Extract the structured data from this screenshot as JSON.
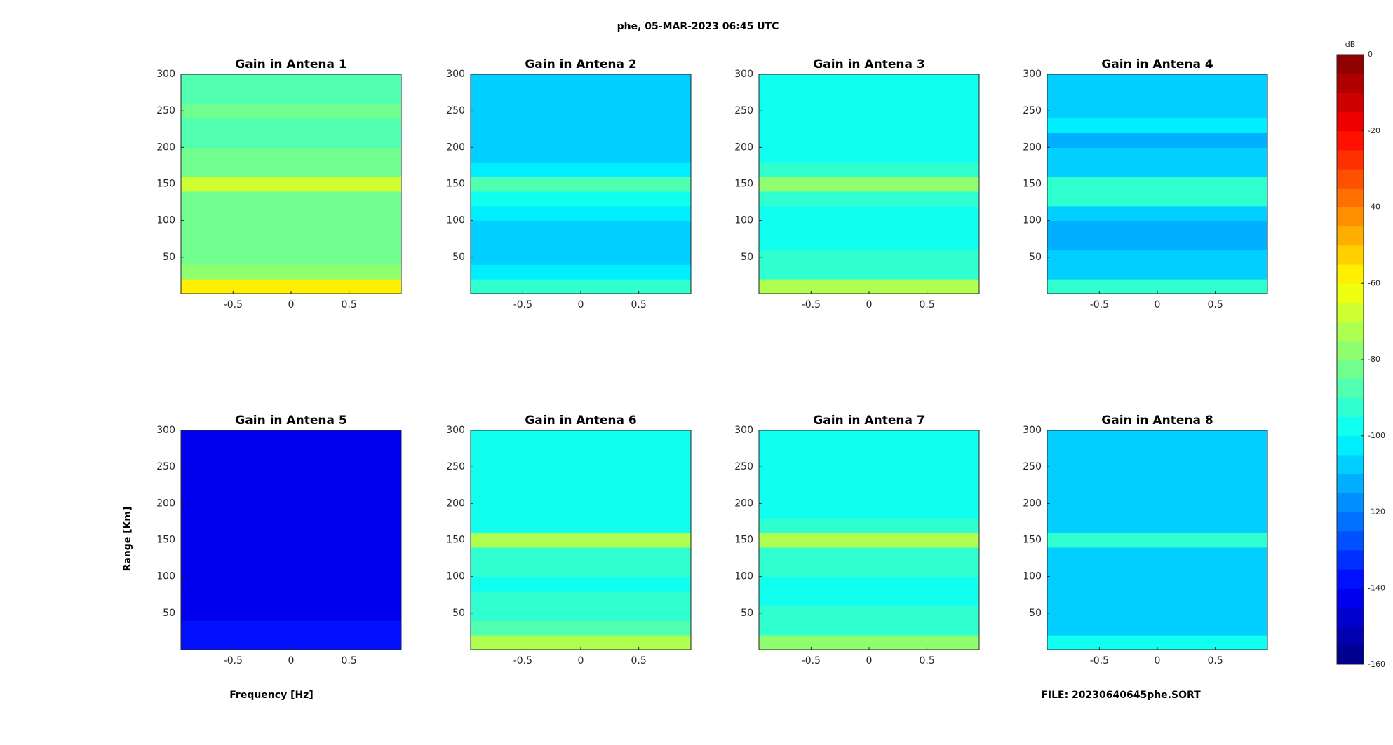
{
  "title": "phe, 05-MAR-2023 06:45 UTC",
  "xlabel": "Frequency [Hz]",
  "ylabel": "Range [Km]",
  "footer": "FILE: 20230640645phe.SORT",
  "colorbar": {
    "label": "dB",
    "lim": [
      -160,
      0
    ],
    "ticks": [
      0,
      -20,
      -40,
      -60,
      -80,
      -100,
      -120,
      -140,
      -160
    ],
    "colormap": "jet",
    "levels": 32
  },
  "chart_data": [
    {
      "type": "heatmap",
      "title": "Gain in Antena 1",
      "xlim": [
        -0.95,
        0.95
      ],
      "ylim": [
        0,
        300
      ],
      "xticks": [
        -0.5,
        0,
        0.5
      ],
      "yticks": [
        50,
        100,
        150,
        200,
        250,
        300
      ],
      "y_bins": [
        0,
        20,
        40,
        60,
        80,
        100,
        120,
        140,
        160,
        180,
        200,
        220,
        240,
        260,
        280,
        300
      ],
      "values": [
        -60,
        -78,
        -82,
        -84,
        -85,
        -84,
        -82,
        -66,
        -84,
        -85,
        -86,
        -86,
        -85,
        -86,
        -86
      ]
    },
    {
      "type": "heatmap",
      "title": "Gain in Antena 2",
      "xlim": [
        -0.95,
        0.95
      ],
      "ylim": [
        0,
        300
      ],
      "xticks": [
        -0.5,
        0,
        0.5
      ],
      "yticks": [
        50,
        100,
        150,
        200,
        250,
        300
      ],
      "y_bins": [
        0,
        20,
        40,
        60,
        80,
        100,
        120,
        140,
        160,
        180,
        200,
        220,
        240,
        260,
        280,
        300
      ],
      "values": [
        -95,
        -105,
        -106,
        -106,
        -106,
        -104,
        -98,
        -88,
        -104,
        -106,
        -107,
        -107,
        -106,
        -106,
        -107
      ]
    },
    {
      "type": "heatmap",
      "title": "Gain in Antena 3",
      "xlim": [
        -0.95,
        0.95
      ],
      "ylim": [
        0,
        300
      ],
      "xticks": [
        -0.5,
        0,
        0.5
      ],
      "yticks": [
        50,
        100,
        150,
        200,
        250,
        300
      ],
      "y_bins": [
        0,
        20,
        40,
        60,
        80,
        100,
        120,
        140,
        160,
        180,
        200,
        220,
        240,
        260,
        280,
        300
      ],
      "values": [
        -72,
        -92,
        -95,
        -96,
        -97,
        -96,
        -94,
        -76,
        -95,
        -96,
        -97,
        -97,
        -96,
        -96,
        -97
      ]
    },
    {
      "type": "heatmap",
      "title": "Gain in Antena 4",
      "xlim": [
        -0.95,
        0.95
      ],
      "ylim": [
        0,
        300
      ],
      "xticks": [
        -0.5,
        0,
        0.5
      ],
      "yticks": [
        50,
        100,
        150,
        200,
        250,
        300
      ],
      "y_bins": [
        0,
        20,
        40,
        60,
        80,
        100,
        120,
        140,
        160,
        180,
        200,
        220,
        240,
        260,
        280,
        300
      ],
      "values": [
        -92,
        -108,
        -110,
        -111,
        -112,
        -110,
        -95,
        -92,
        -110,
        -108,
        -112,
        -105,
        -110,
        -108,
        -110
      ]
    },
    {
      "type": "heatmap",
      "title": "Gain in Antena 5",
      "xlim": [
        -0.95,
        0.95
      ],
      "ylim": [
        0,
        300
      ],
      "xticks": [
        -0.5,
        0,
        0.5
      ],
      "yticks": [
        50,
        100,
        150,
        200,
        250,
        300
      ],
      "y_bins": [
        0,
        20,
        40,
        60,
        80,
        100,
        120,
        140,
        160,
        180,
        200,
        220,
        240,
        260,
        280,
        300
      ],
      "values": [
        -138,
        -140,
        -141,
        -141,
        -141,
        -141,
        -141,
        -141,
        -141,
        -141,
        -141,
        -141,
        -141,
        -141,
        -141
      ]
    },
    {
      "type": "heatmap",
      "title": "Gain in Antena 6",
      "xlim": [
        -0.95,
        0.95
      ],
      "ylim": [
        0,
        300
      ],
      "xticks": [
        -0.5,
        0,
        0.5
      ],
      "yticks": [
        50,
        100,
        150,
        200,
        250,
        300
      ],
      "y_bins": [
        0,
        20,
        40,
        60,
        80,
        100,
        120,
        140,
        160,
        180,
        200,
        220,
        240,
        260,
        280,
        300
      ],
      "values": [
        -72,
        -90,
        -93,
        -95,
        -96,
        -95,
        -93,
        -72,
        -96,
        -97,
        -98,
        -98,
        -98,
        -98,
        -98
      ]
    },
    {
      "type": "heatmap",
      "title": "Gain in Antena 7",
      "xlim": [
        -0.95,
        0.95
      ],
      "ylim": [
        0,
        300
      ],
      "xticks": [
        -0.5,
        0,
        0.5
      ],
      "yticks": [
        50,
        100,
        150,
        200,
        250,
        300
      ],
      "y_bins": [
        0,
        20,
        40,
        60,
        80,
        100,
        120,
        140,
        160,
        180,
        200,
        220,
        240,
        260,
        280,
        300
      ],
      "values": [
        -76,
        -92,
        -95,
        -96,
        -96,
        -95,
        -94,
        -74,
        -95,
        -96,
        -97,
        -97,
        -96,
        -97,
        -97
      ]
    },
    {
      "type": "heatmap",
      "title": "Gain in Antena 8",
      "xlim": [
        -0.95,
        0.95
      ],
      "ylim": [
        0,
        300
      ],
      "xticks": [
        -0.5,
        0,
        0.5
      ],
      "yticks": [
        50,
        100,
        150,
        200,
        250,
        300
      ],
      "y_bins": [
        0,
        20,
        40,
        60,
        80,
        100,
        120,
        140,
        160,
        180,
        200,
        220,
        240,
        260,
        280,
        300
      ],
      "values": [
        -96,
        -108,
        -109,
        -110,
        -110,
        -109,
        -108,
        -92,
        -108,
        -109,
        -110,
        -110,
        -110,
        -110,
        -110
      ]
    }
  ]
}
